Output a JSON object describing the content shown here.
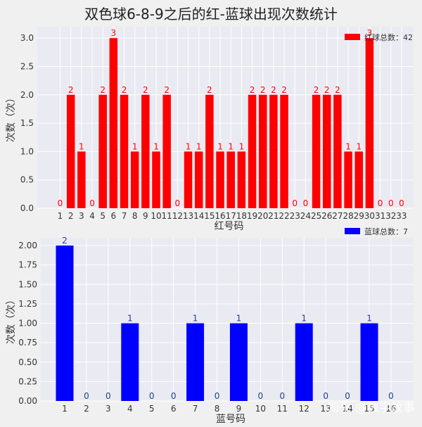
{
  "title": "双色球6-8-9之后的红-蓝球出现次数统计",
  "watermark": "知乎 @数字故事",
  "colors": {
    "background": "#f0f0f0",
    "plot_bg": "#eaeaf2",
    "grid": "#ffffff",
    "red": "#ff0000",
    "blue": "#0000ff",
    "blue_label": "#1f3f8f"
  },
  "chart_data": [
    {
      "type": "bar",
      "xlabel": "红号码",
      "ylabel": "次数（次）",
      "legend": "红球总数：42",
      "legend_position": "top-right",
      "color": "#ff0000",
      "label_color": "#ff0000",
      "ylim": [
        0,
        3.2
      ],
      "yticks": [
        "0.0",
        "0.5",
        "1.0",
        "1.5",
        "2.0",
        "2.5",
        "3.0"
      ],
      "ytick_values": [
        0,
        0.5,
        1,
        1.5,
        2,
        2.5,
        3
      ],
      "categories": [
        "1",
        "2",
        "3",
        "4",
        "5",
        "6",
        "7",
        "8",
        "9",
        "10",
        "11",
        "12",
        "13",
        "14",
        "15",
        "16",
        "17",
        "18",
        "19",
        "20",
        "21",
        "22",
        "23",
        "24",
        "25",
        "26",
        "27",
        "28",
        "29",
        "30",
        "31",
        "32",
        "33"
      ],
      "values": [
        0,
        2,
        1,
        0,
        2,
        3,
        2,
        1,
        2,
        1,
        2,
        0,
        1,
        1,
        2,
        1,
        1,
        1,
        2,
        2,
        2,
        2,
        0,
        0,
        2,
        2,
        2,
        1,
        1,
        3,
        0,
        0,
        0
      ],
      "grid": true
    },
    {
      "type": "bar",
      "xlabel": "蓝号码",
      "ylabel": "次数（次）",
      "legend": "蓝球总数：7",
      "legend_position": "top-right",
      "color": "#0000ff",
      "label_color": "#1f3f8f",
      "ylim": [
        0,
        2.1
      ],
      "yticks": [
        "0.00",
        "0.25",
        "0.50",
        "0.75",
        "1.00",
        "1.25",
        "1.50",
        "1.75",
        "2.00"
      ],
      "ytick_values": [
        0,
        0.25,
        0.5,
        0.75,
        1,
        1.25,
        1.5,
        1.75,
        2
      ],
      "categories": [
        "1",
        "2",
        "3",
        "4",
        "5",
        "6",
        "7",
        "8",
        "9",
        "10",
        "11",
        "12",
        "13",
        "14",
        "15",
        "16"
      ],
      "values": [
        2,
        0,
        0,
        1,
        0,
        0,
        1,
        0,
        1,
        0,
        0,
        1,
        0,
        0,
        1,
        0
      ],
      "grid": true
    }
  ]
}
